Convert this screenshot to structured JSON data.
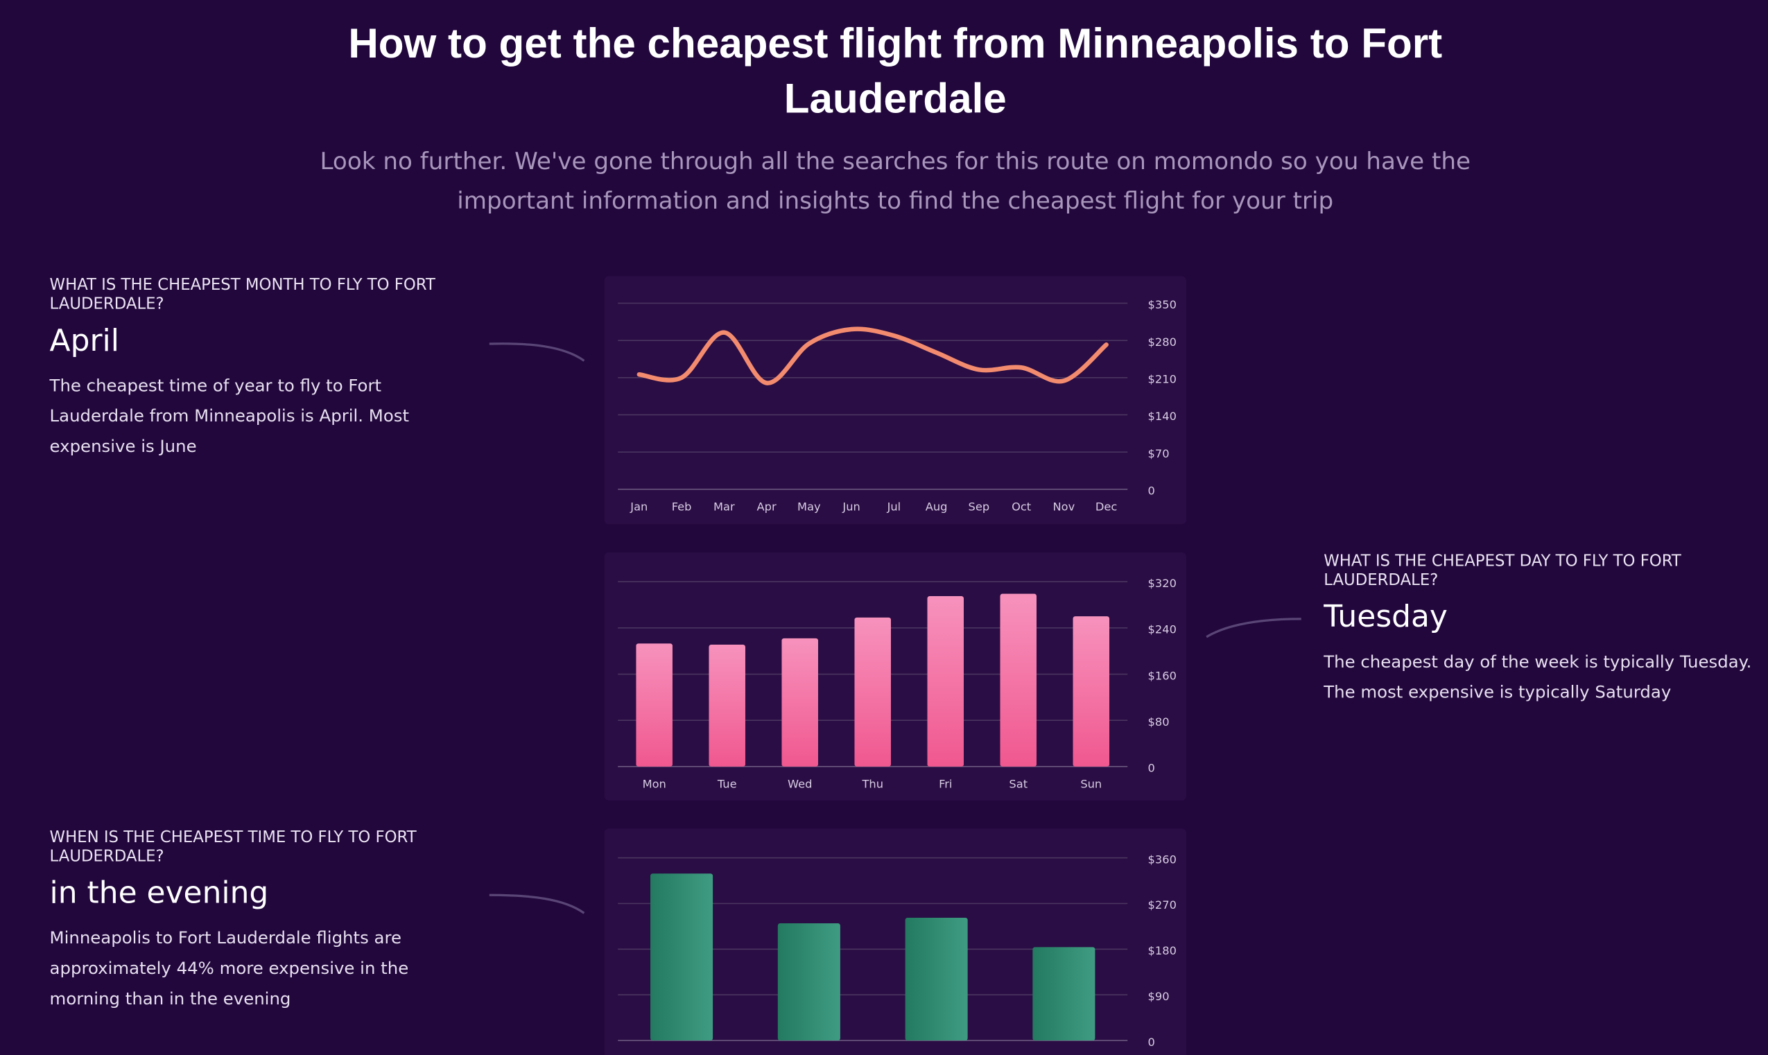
{
  "header": {
    "title": "How to get the cheapest flight from Minneapolis to Fort Lauderdale",
    "subtitle": "Look no further. We've gone through all the searches for this route on momondo so you have the important information and insights to find the cheapest flight for your trip"
  },
  "sections": [
    {
      "question": "WHAT IS THE CHEAPEST MONTH TO FLY TO FORT LAUDERDALE?",
      "answer": "April",
      "text": "The cheapest time of year to fly to Fort Lauderdale from Minneapolis is April. Most expensive is June"
    },
    {
      "question": "WHAT IS THE CHEAPEST DAY TO FLY TO FORT LAUDERDALE?",
      "answer": "Tuesday",
      "text": "The cheapest day of the week is typically Tuesday. The most expensive is typically Saturday"
    },
    {
      "question": "WHEN IS THE CHEAPEST TIME TO FLY TO FORT LAUDERDALE?",
      "answer": "in the evening",
      "text": "Minneapolis to Fort Lauderdale flights are approximately 44% more expensive in the morning than in the evening"
    }
  ],
  "chart_data": [
    {
      "type": "line",
      "categories": [
        "Jan",
        "Feb",
        "Mar",
        "Apr",
        "May",
        "Jun",
        "Jul",
        "Aug",
        "Sep",
        "Oct",
        "Nov",
        "Dec"
      ],
      "values": [
        216,
        210,
        295,
        200,
        274,
        301,
        289,
        257,
        225,
        229,
        204,
        272
      ],
      "color": "#f38b6f",
      "ylim": [
        0,
        350
      ],
      "yticks": [
        0,
        {
          "value": 70,
          "label": "$70"
        },
        {
          "value": 140,
          "label": "$140"
        },
        {
          "value": 210,
          "label": "$210"
        },
        {
          "value": 280,
          "label": "$280"
        },
        {
          "value": 350,
          "label": "$350"
        }
      ],
      "grid": true
    },
    {
      "type": "bar",
      "categories": [
        "Mon",
        "Tue",
        "Wed",
        "Thu",
        "Fri",
        "Sat",
        "Sun"
      ],
      "values": [
        213,
        211,
        222,
        258,
        295,
        299,
        260
      ],
      "gradient": {
        "from": "#f792bd",
        "to": "#f0588f",
        "direction": "vertical"
      },
      "ylim": [
        0,
        320
      ],
      "yticks": [
        0,
        {
          "value": 80,
          "label": "$80"
        },
        {
          "value": 160,
          "label": "$160"
        },
        {
          "value": 240,
          "label": "$240"
        },
        {
          "value": 320,
          "label": "$320"
        }
      ],
      "grid": true
    },
    {
      "type": "bar",
      "categories": [
        null,
        null,
        null,
        null
      ],
      "values": [
        329,
        231,
        242,
        184
      ],
      "gradient": {
        "from": "#237a60",
        "to": "#3f9c82",
        "direction": "horizontal"
      },
      "ylim": [
        0,
        360
      ],
      "yticks": [
        0,
        {
          "value": 90,
          "label": "$90"
        },
        {
          "value": 180,
          "label": "$180"
        },
        {
          "value": 270,
          "label": "$270"
        },
        {
          "value": 360,
          "label": "$360"
        }
      ],
      "grid": true
    }
  ]
}
